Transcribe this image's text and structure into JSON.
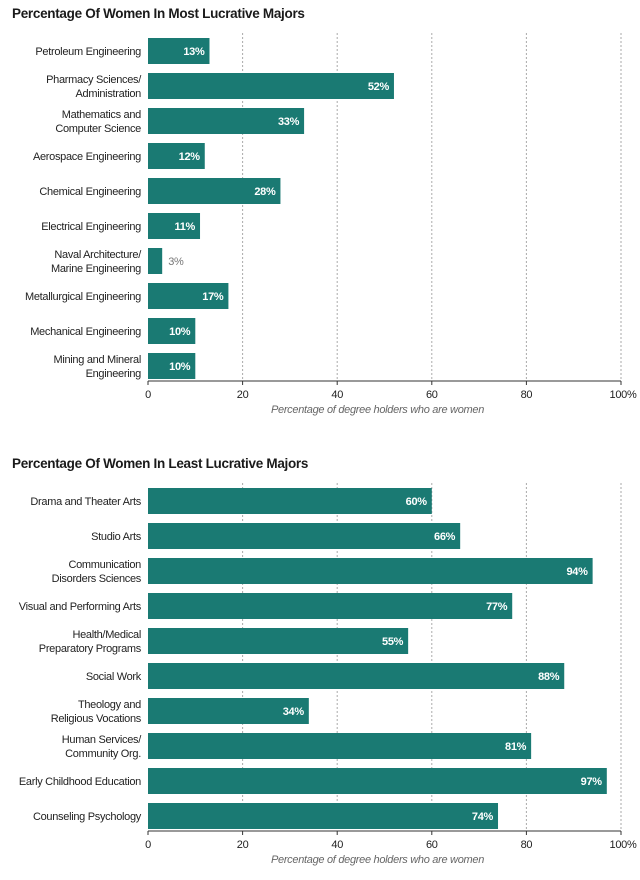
{
  "colors": {
    "bar": "#1a7a73",
    "grid": "#aaaaaa",
    "axis": "#333333"
  },
  "chart_data": [
    {
      "type": "bar",
      "orientation": "horizontal",
      "title": "Percentage Of Women In Most Lucrative Majors",
      "xlabel": "Percentage of degree holders who are women",
      "ylabel": "",
      "xlim": [
        0,
        100
      ],
      "xticks": [
        "0",
        "20",
        "40",
        "60",
        "80",
        "100%"
      ],
      "grid": "vertical dashed",
      "categories": [
        [
          "Petroleum Engineering"
        ],
        [
          "Pharmacy Sciences/",
          "Administration"
        ],
        [
          "Mathematics and",
          "Computer Science"
        ],
        [
          "Aerospace Engineering"
        ],
        [
          "Chemical Engineering"
        ],
        [
          "Electrical Engineering"
        ],
        [
          "Naval Architecture/",
          "Marine Engineering"
        ],
        [
          "Metallurgical Engineering"
        ],
        [
          "Mechanical Engineering"
        ],
        [
          "Mining and Mineral",
          "Engineering"
        ]
      ],
      "values": [
        13,
        52,
        33,
        12,
        28,
        11,
        3,
        17,
        10,
        10
      ],
      "value_labels": [
        "13%",
        "52%",
        "33%",
        "12%",
        "28%",
        "11%",
        "3%",
        "17%",
        "10%",
        "10%"
      ]
    },
    {
      "type": "bar",
      "orientation": "horizontal",
      "title": "Percentage Of Women In Least Lucrative Majors",
      "xlabel": "Percentage of degree holders who are women",
      "ylabel": "",
      "xlim": [
        0,
        100
      ],
      "xticks": [
        "0",
        "20",
        "40",
        "60",
        "80",
        "100%"
      ],
      "grid": "vertical dashed",
      "categories": [
        [
          "Drama and Theater Arts"
        ],
        [
          "Studio Arts"
        ],
        [
          "Communication",
          "Disorders Sciences"
        ],
        [
          "Visual and Performing Arts"
        ],
        [
          "Health/Medical",
          "Preparatory Programs"
        ],
        [
          "Social Work"
        ],
        [
          "Theology and",
          "Religious Vocations"
        ],
        [
          "Human Services/",
          "Community Org."
        ],
        [
          "Early Childhood Education"
        ],
        [
          "Counseling Psychology"
        ]
      ],
      "values": [
        60,
        66,
        94,
        77,
        55,
        88,
        34,
        81,
        97,
        74
      ],
      "value_labels": [
        "60%",
        "66%",
        "94%",
        "77%",
        "55%",
        "88%",
        "34%",
        "81%",
        "97%",
        "74%"
      ]
    }
  ]
}
